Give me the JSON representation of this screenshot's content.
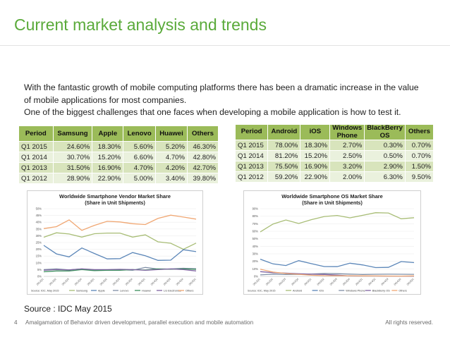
{
  "title": "Current market analysis and trends",
  "paragraph": [
    "With the fantastic growth of mobile computing platforms there has been a dramatic increase in the value",
    "of mobile applications for most companies.",
    "One of the biggest challenges that one faces when developing a mobile application is how to test it."
  ],
  "vendor_table": {
    "headers": [
      "Period",
      "Samsung",
      "Apple",
      "Lenovo",
      "Huawei",
      "Others"
    ],
    "rows": [
      [
        "Q1 2015",
        "24.60%",
        "18.30%",
        "5.60%",
        "5.20%",
        "46.30%"
      ],
      [
        "Q1 2014",
        "30.70%",
        "15.20%",
        "6.60%",
        "4.70%",
        "42.80%"
      ],
      [
        "Q1 2013",
        "31.50%",
        "16.90%",
        "4.70%",
        "4.20%",
        "42.70%"
      ],
      [
        "Q1 2012",
        "28.90%",
        "22.90%",
        "5.00%",
        "3.40%",
        "39.80%"
      ]
    ]
  },
  "os_table": {
    "headers": [
      "Period",
      "Android",
      "iOS",
      "Windows Phone",
      "BlackBerry OS",
      "Others"
    ],
    "rows": [
      [
        "Q1 2015",
        "78.00%",
        "18.30%",
        "2.70%",
        "0.30%",
        "0.70%"
      ],
      [
        "Q1 2014",
        "81.20%",
        "15.20%",
        "2.50%",
        "0.50%",
        "0.70%"
      ],
      [
        "Q1 2013",
        "75.50%",
        "16.90%",
        "3.20%",
        "2.90%",
        "1.50%"
      ],
      [
        "Q1 2012",
        "59.20%",
        "22.90%",
        "2.00%",
        "6.30%",
        "9.50%"
      ]
    ]
  },
  "chart_data": [
    {
      "type": "line",
      "title": "Worldwide Smartphone Vendor Market Share",
      "subtitle": "(Share in Unit Shipments)",
      "x": [
        "2012Q1",
        "2012Q2",
        "2012Q3",
        "2012Q4",
        "2013Q1",
        "2013Q2",
        "2013Q3",
        "2013Q4",
        "2014Q1",
        "2014Q2",
        "2014Q3",
        "2014Q4",
        "2015Q1"
      ],
      "y_ticks": [
        "0%",
        "5%",
        "10%",
        "15%",
        "20%",
        "25%",
        "30%",
        "35%",
        "40%",
        "45%",
        "50%"
      ],
      "ylim": [
        0,
        50
      ],
      "series": [
        {
          "name": "Samsung",
          "color": "#a8bd76",
          "values": [
            28.9,
            32.2,
            31.3,
            29.0,
            31.5,
            32.0,
            32.0,
            29.0,
            30.7,
            25.5,
            24.5,
            20.0,
            24.6
          ]
        },
        {
          "name": "Apple",
          "color": "#5b86b8",
          "values": [
            22.9,
            16.6,
            14.4,
            21.0,
            16.9,
            12.9,
            13.1,
            17.6,
            15.2,
            11.8,
            12.0,
            19.7,
            18.3
          ]
        },
        {
          "name": "Lenovo",
          "color": "#7f8fa6",
          "values": [
            5.0,
            5.5,
            4.8,
            5.5,
            4.7,
            4.9,
            5.0,
            4.5,
            6.6,
            5.4,
            5.5,
            6.0,
            5.6
          ]
        },
        {
          "name": "Huawei",
          "color": "#3a8f5c",
          "values": [
            3.4,
            4.0,
            4.0,
            5.0,
            4.2,
            4.5,
            4.5,
            5.0,
            4.7,
            5.5,
            5.3,
            5.5,
            5.2
          ]
        },
        {
          "name": "LG Electronics",
          "color": "#8064a2",
          "values": [
            4.5,
            5.0,
            4.8,
            5.5,
            5.0,
            5.0,
            5.2,
            5.0,
            4.5,
            5.0,
            5.5,
            5.0,
            4.0
          ]
        },
        {
          "name": "Others",
          "color": "#f0a773",
          "values": [
            35.3,
            36.7,
            41.7,
            34.0,
            37.7,
            40.7,
            40.2,
            38.9,
            38.3,
            42.8,
            45.2,
            43.8,
            42.3
          ]
        }
      ],
      "source": "Source: IDC, May 2015"
    },
    {
      "type": "line",
      "title": "Worldwide Smartphone OS Market Share",
      "subtitle": "(Share in Unit Shipments)",
      "x": [
        "2012Q1",
        "2012Q2",
        "2012Q3",
        "2012Q4",
        "2013Q1",
        "2013Q2",
        "2013Q3",
        "2013Q4",
        "2014Q1",
        "2014Q2",
        "2014Q3",
        "2014Q4",
        "2015Q1"
      ],
      "y_ticks": [
        "0%",
        "10%",
        "20%",
        "30%",
        "40%",
        "50%",
        "60%",
        "70%",
        "80%",
        "90%"
      ],
      "ylim": [
        0,
        90
      ],
      "series": [
        {
          "name": "Android",
          "color": "#a8bd76",
          "values": [
            59.2,
            69.7,
            75.0,
            70.3,
            75.5,
            79.6,
            81.0,
            77.8,
            81.2,
            84.7,
            84.3,
            76.6,
            78.0
          ]
        },
        {
          "name": "iOS",
          "color": "#5b86b8",
          "values": [
            22.9,
            16.6,
            14.4,
            20.9,
            16.9,
            13.0,
            12.9,
            17.5,
            15.2,
            11.7,
            12.0,
            19.7,
            18.3
          ]
        },
        {
          "name": "Windows Phone",
          "color": "#7f8fa6",
          "values": [
            2.0,
            3.0,
            2.5,
            2.6,
            3.2,
            3.8,
            3.6,
            3.0,
            2.5,
            2.8,
            2.9,
            2.8,
            2.7
          ]
        },
        {
          "name": "BlackBerry OS",
          "color": "#8064a2",
          "values": [
            6.3,
            5.0,
            4.3,
            3.5,
            2.9,
            2.5,
            1.7,
            0.6,
            0.5,
            0.5,
            0.4,
            0.4,
            0.3
          ]
        },
        {
          "name": "Others",
          "color": "#f0a773",
          "values": [
            9.5,
            5.7,
            3.8,
            2.7,
            1.5,
            0.9,
            0.8,
            0.8,
            0.7,
            0.6,
            0.5,
            0.4,
            0.7
          ]
        }
      ],
      "source": "Source: IDC, May 2015"
    }
  ],
  "source_note": "Source : IDC May 2015",
  "footer": {
    "page_number": "4",
    "text": "Amalgamation of Behavior driven development, parallel execution and mobile automation",
    "rights": "All rights reserved."
  },
  "colors": {
    "title": "#5aaa3a",
    "table_header": "#9bbb59",
    "row_dark": "#d8e4bc",
    "row_light": "#eaf1dd"
  }
}
